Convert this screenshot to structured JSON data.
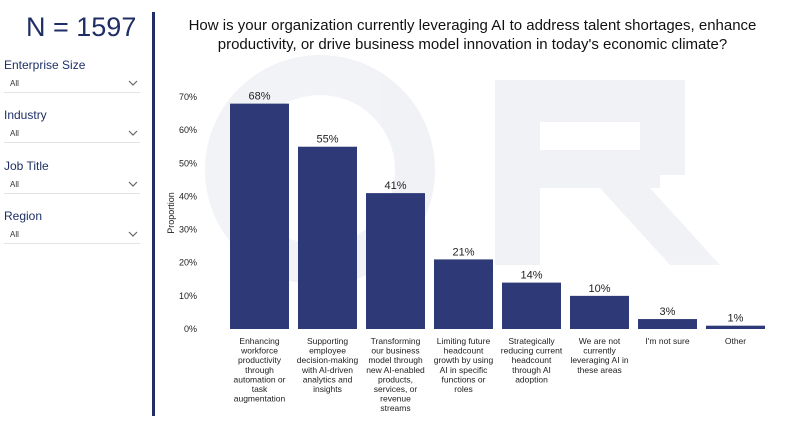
{
  "sample_size": "N = 1597",
  "filters": [
    {
      "label": "Enterprise Size",
      "value": "All"
    },
    {
      "label": "Industry",
      "value": "All"
    },
    {
      "label": "Job Title",
      "value": "All"
    },
    {
      "label": "Region",
      "value": "All"
    }
  ],
  "colors": {
    "bar": "#2e3a78",
    "accent": "#1f2f66"
  },
  "chart_data": {
    "type": "bar",
    "title": "How is your organization currently leveraging AI to address talent shortages, enhance productivity, or drive business model innovation in today's economic climate?",
    "xlabel": "",
    "ylabel": "Proportion",
    "ylim": [
      0,
      70
    ],
    "yticks": [
      "0%",
      "10%",
      "20%",
      "30%",
      "40%",
      "50%",
      "60%",
      "70%"
    ],
    "categories": [
      "Enhancing workforce productivity through automation or task augmentation",
      "Supporting employee decision-making with AI-driven analytics and insights",
      "Transforming our business model through new AI-enabled products, services, or revenue streams",
      "Limiting future headcount growth by using AI in specific functions or roles",
      "Strategically reducing current headcount through AI adoption",
      "We are not currently leveraging AI in these areas",
      "I'm not sure",
      "Other"
    ],
    "category_lines": [
      [
        "Enhancing",
        "workforce",
        "productivity",
        "through",
        "automation or",
        "task",
        "augmentation"
      ],
      [
        "Supporting",
        "employee",
        "decision-making",
        "with AI-driven",
        "analytics and",
        "insights"
      ],
      [
        "Transforming",
        "our business",
        "model through",
        "new AI-enabled",
        "products,",
        "services, or",
        "revenue",
        "streams"
      ],
      [
        "Limiting future",
        "headcount",
        "growth by using",
        "AI in specific",
        "functions or",
        "roles"
      ],
      [
        "Strategically",
        "reducing current",
        "headcount",
        "through AI",
        "adoption"
      ],
      [
        "We are not",
        "currently",
        "leveraging AI in",
        "these areas"
      ],
      [
        "I'm not sure"
      ],
      [
        "Other"
      ]
    ],
    "values": [
      68,
      55,
      41,
      21,
      14,
      10,
      3,
      1
    ],
    "value_labels": [
      "68%",
      "55%",
      "41%",
      "21%",
      "14%",
      "10%",
      "3%",
      "1%"
    ],
    "grid": false,
    "legend": "none"
  }
}
